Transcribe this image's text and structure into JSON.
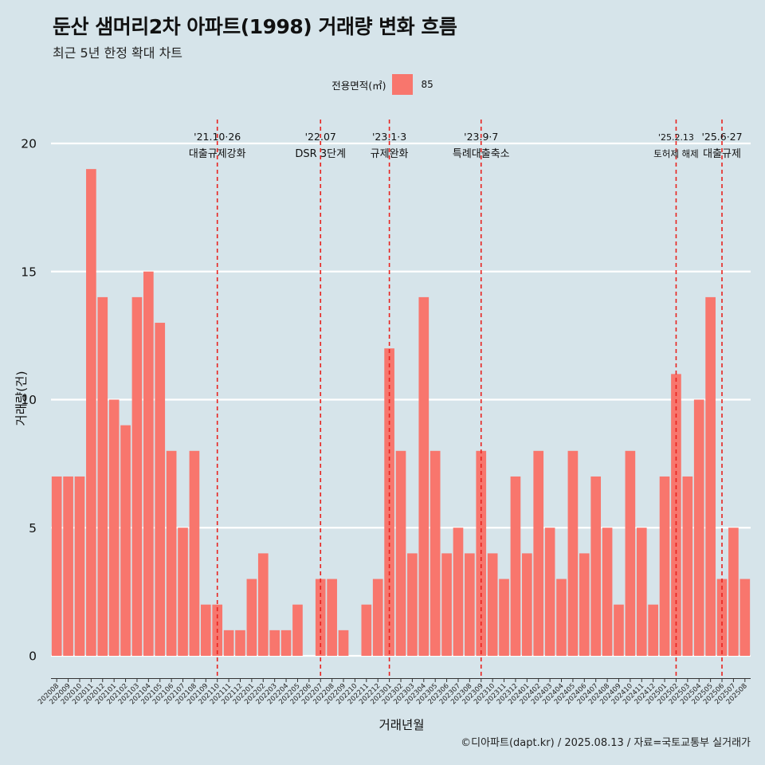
{
  "header": {
    "title": "둔산 샘머리2차 아파트(1998) 거래량 변화 흐름",
    "subtitle": "최근 5년 한정 확대 차트"
  },
  "legend": {
    "title": "전용면적(㎡)",
    "items": [
      {
        "label": "85",
        "color": "#f8766d"
      }
    ]
  },
  "caption": "©디아파트(dapt.kr) / 2025.08.13 / 자료=국토교통부 실거래가",
  "colors": {
    "background": "#d6e4ea",
    "bar": "#f8766d",
    "grid": "#ffffff",
    "event_line": "#e8231f"
  },
  "chart_data": {
    "type": "bar",
    "xlabel": "거래년월",
    "ylabel": "거래량(건)",
    "ylim": [
      0,
      20
    ],
    "yticks": [
      0,
      5,
      10,
      15,
      20
    ],
    "grid": "horizontal",
    "legend_position": "top",
    "categories": [
      "202008",
      "202009",
      "202010",
      "202011",
      "202012",
      "202101",
      "202102",
      "202103",
      "202104",
      "202105",
      "202106",
      "202107",
      "202108",
      "202109",
      "202110",
      "202111",
      "202112",
      "202201",
      "202202",
      "202203",
      "202204",
      "202205",
      "202206",
      "202207",
      "202208",
      "202209",
      "202210",
      "202211",
      "202212",
      "202301",
      "202302",
      "202303",
      "202304",
      "202305",
      "202306",
      "202307",
      "202308",
      "202309",
      "202310",
      "202311",
      "202312",
      "202401",
      "202402",
      "202403",
      "202404",
      "202405",
      "202406",
      "202407",
      "202408",
      "202409",
      "202410",
      "202411",
      "202412",
      "202501",
      "202502",
      "202503",
      "202504",
      "202505",
      "202506",
      "202507",
      "202508"
    ],
    "series": [
      {
        "name": "85",
        "values": [
          7,
          7,
          7,
          19,
          14,
          10,
          9,
          14,
          15,
          13,
          8,
          5,
          8,
          2,
          2,
          1,
          1,
          3,
          4,
          1,
          1,
          2,
          0,
          3,
          3,
          1,
          0,
          2,
          3,
          12,
          8,
          4,
          14,
          8,
          4,
          5,
          4,
          8,
          4,
          3,
          7,
          4,
          8,
          5,
          3,
          8,
          4,
          7,
          5,
          2,
          8,
          5,
          2,
          7,
          11,
          7,
          10,
          14,
          3,
          5,
          3
        ]
      }
    ],
    "annotations": [
      {
        "date_label": "'21.10·26",
        "text": "대출규제강화",
        "at": "202110"
      },
      {
        "date_label": "'22.07",
        "text": "DSR 3단계",
        "at": "202207"
      },
      {
        "date_label": "'23.1·3",
        "text": "규제완화",
        "at": "202301"
      },
      {
        "date_label": "'23.9·7",
        "text": "특례대출축소",
        "at": "202309"
      },
      {
        "date_label": "'25.2.13",
        "text": "토허제 해제",
        "at": "202502"
      },
      {
        "date_label": "'25.6·27",
        "text": "대출규제",
        "at": "202506"
      }
    ]
  }
}
